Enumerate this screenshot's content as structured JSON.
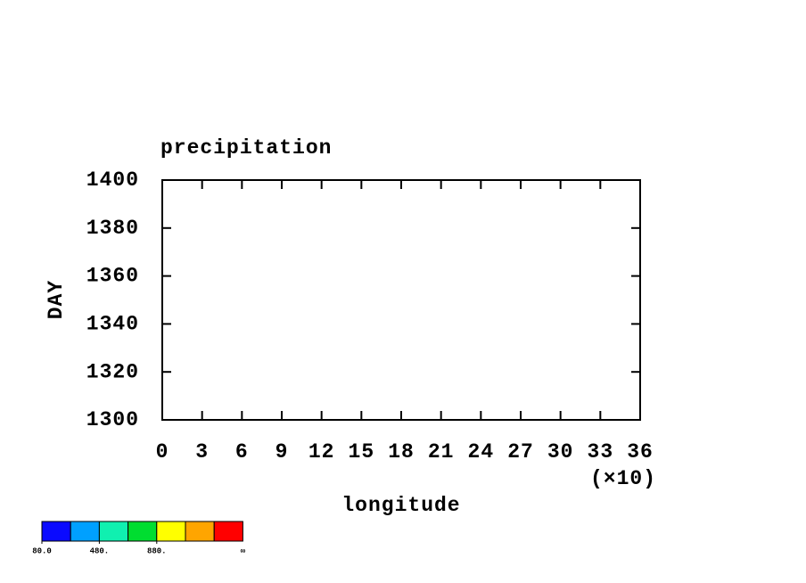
{
  "chart_data": {
    "type": "contour",
    "title": "precipitation",
    "xlabel": "longitude",
    "ylabel": "DAY",
    "x_multiplier": "(×10)",
    "xlim": [
      0,
      36
    ],
    "xticks": [
      0,
      3,
      6,
      9,
      12,
      15,
      18,
      21,
      24,
      27,
      30,
      33,
      36
    ],
    "ylim": [
      1300,
      1400
    ],
    "yticks": [
      1300,
      1320,
      1340,
      1360,
      1380,
      1400
    ],
    "colorbar": {
      "colors": [
        "#0a0aff",
        "#00a0ff",
        "#10f0b0",
        "#00dd30",
        "#ffff00",
        "#ffa500",
        "#ff0000"
      ],
      "ticks": [
        {
          "value": 80,
          "label": "80.0"
        },
        {
          "value": 480,
          "label": "480."
        },
        {
          "value": 880,
          "label": "880."
        }
      ],
      "max_label": "∞"
    }
  }
}
